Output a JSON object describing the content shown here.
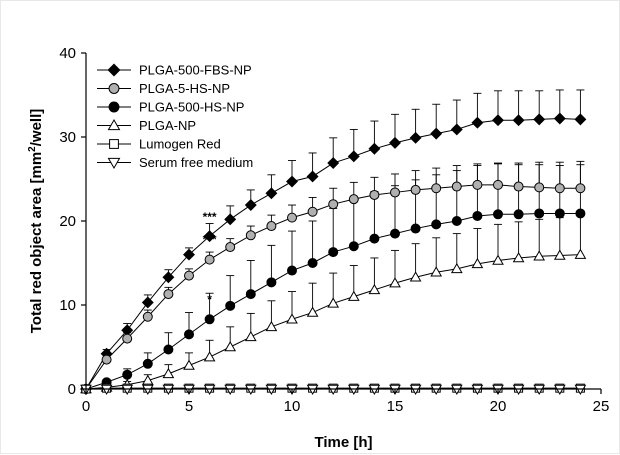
{
  "chart_data": {
    "type": "line",
    "xlabel": "Time [h]",
    "ylabel_prefix": "Total red object area [mm",
    "ylabel_sup": "2",
    "ylabel_suffix": "/well]",
    "xlim": [
      0,
      25
    ],
    "ylim": [
      0,
      40
    ],
    "x_ticks": [
      "0",
      "5",
      "10",
      "15",
      "20",
      "25"
    ],
    "y_ticks": [
      "0",
      "10",
      "20",
      "30",
      "40"
    ],
    "grid": false,
    "legend_position": "top-left",
    "x": [
      0,
      1,
      2,
      3,
      4,
      5,
      6,
      7,
      8,
      9,
      10,
      11,
      12,
      13,
      14,
      15,
      16,
      17,
      18,
      19,
      20,
      21,
      22,
      23,
      24
    ],
    "series": [
      {
        "name": "PLGA-500-FBS-NP",
        "marker": "diamond",
        "fill": "#000000",
        "values": [
          0,
          4.2,
          7.0,
          10.3,
          13.3,
          16.0,
          18.2,
          20.2,
          21.9,
          23.3,
          24.7,
          25.3,
          26.9,
          27.7,
          28.6,
          29.3,
          29.9,
          30.4,
          30.9,
          31.7,
          32.0,
          32.0,
          32.1,
          32.2,
          32.1
        ],
        "errors": [
          0,
          0.5,
          0.8,
          0.9,
          0.9,
          0.8,
          1.5,
          1.6,
          1.8,
          2.2,
          2.5,
          2.8,
          3.0,
          3.2,
          3.3,
          3.4,
          3.4,
          3.5,
          3.5,
          3.5,
          3.5,
          3.5,
          3.4,
          3.4,
          3.5
        ]
      },
      {
        "name": "PLGA-5-HS-NP",
        "marker": "circle",
        "fill": "#b0b0b0",
        "values": [
          0,
          3.5,
          6.0,
          8.6,
          11.3,
          13.5,
          15.4,
          16.9,
          18.3,
          19.4,
          20.4,
          21.1,
          22.0,
          22.6,
          23.1,
          23.4,
          23.7,
          23.9,
          24.1,
          24.3,
          24.3,
          24.1,
          24.0,
          23.9,
          23.9
        ],
        "errors": [
          0,
          0.5,
          0.7,
          0.8,
          0.8,
          0.8,
          0.9,
          1.0,
          1.1,
          1.3,
          1.5,
          1.7,
          1.9,
          2.0,
          2.1,
          2.2,
          2.3,
          2.4,
          2.5,
          2.5,
          2.6,
          2.6,
          2.7,
          2.7,
          2.8
        ]
      },
      {
        "name": "PLGA-500-HS-NP",
        "marker": "circle",
        "fill": "#000000",
        "values": [
          0,
          0.8,
          1.7,
          3.0,
          4.7,
          6.5,
          8.3,
          9.9,
          11.3,
          12.7,
          14.1,
          15.0,
          16.3,
          17.0,
          17.9,
          18.5,
          19.1,
          19.6,
          20.0,
          20.6,
          20.8,
          20.8,
          20.9,
          20.9,
          20.9
        ],
        "errors": [
          0,
          0.3,
          0.7,
          1.3,
          2.0,
          2.6,
          3.1,
          3.6,
          4.0,
          4.4,
          4.7,
          5.0,
          5.2,
          5.4,
          5.6,
          5.7,
          5.8,
          5.9,
          6.0,
          6.0,
          6.0,
          6.1,
          6.1,
          6.1,
          6.2
        ]
      },
      {
        "name": "PLGA-NP",
        "marker": "triangle-up",
        "fill": "#ffffff",
        "values": [
          0,
          0.2,
          0.5,
          1.0,
          1.8,
          2.8,
          3.8,
          5.0,
          6.2,
          7.4,
          8.3,
          9.1,
          10.2,
          11.0,
          11.8,
          12.6,
          13.3,
          13.9,
          14.3,
          14.9,
          15.3,
          15.6,
          15.8,
          15.9,
          16.0
        ],
        "errors": [
          0,
          0.2,
          0.4,
          0.7,
          1.1,
          1.5,
          2.0,
          2.4,
          2.8,
          3.1,
          3.3,
          3.5,
          3.6,
          3.7,
          3.8,
          3.9,
          4.0,
          4.1,
          4.2,
          4.2,
          4.3,
          4.3,
          4.4,
          4.5,
          4.6
        ]
      },
      {
        "name": "Lumogen Red",
        "marker": "square",
        "fill": "#ffffff",
        "values": [
          0,
          0.1,
          0.1,
          0.1,
          0.1,
          0.1,
          0.1,
          0.1,
          0.1,
          0.1,
          0.1,
          0.1,
          0.1,
          0.1,
          0.1,
          0.1,
          0.1,
          0.1,
          0.1,
          0.1,
          0.1,
          0.1,
          0.1,
          0.1,
          0.1
        ],
        "errors": [
          0,
          0.1,
          0.1,
          0.1,
          0.1,
          0.1,
          0.1,
          0.1,
          0.1,
          0.1,
          0.1,
          0.1,
          0.1,
          0.1,
          0.1,
          0.1,
          0.1,
          0.1,
          0.1,
          0.1,
          0.1,
          0.1,
          0.1,
          0.1,
          0.1
        ]
      },
      {
        "name": "Serum free medium",
        "marker": "triangle-down",
        "fill": "#ffffff",
        "values": [
          0,
          0,
          0,
          0,
          0,
          0,
          0,
          0,
          0,
          0,
          0,
          0,
          0,
          0,
          0,
          0,
          0,
          0,
          0,
          0,
          0,
          0,
          0,
          0,
          0
        ],
        "errors": [
          0,
          0,
          0,
          0,
          0,
          0,
          0,
          0,
          0,
          0,
          0,
          0,
          0,
          0,
          0,
          0,
          0,
          0,
          0,
          0,
          0,
          0,
          0,
          0,
          0
        ]
      }
    ],
    "annotations": [
      {
        "text": "***",
        "x": 6,
        "y": 20.0
      },
      {
        "text": "***",
        "x": 6,
        "y": 17.3
      },
      {
        "text": "*",
        "x": 6,
        "y": 10.2
      }
    ]
  }
}
